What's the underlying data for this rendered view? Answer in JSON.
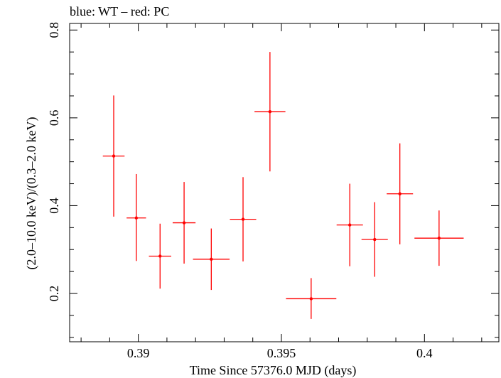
{
  "chart_data": {
    "type": "scatter",
    "title": "blue: WT – red: PC",
    "xlabel": "Time Since 57376.0 MJD (days)",
    "ylabel": "(2.0–10.0 keV)/(0.3–2.0 keV)",
    "xlim": [
      0.3876,
      0.4026
    ],
    "ylim": [
      0.09,
      0.815
    ],
    "x_ticks": [
      0.39,
      0.395,
      0.4
    ],
    "x_tick_labels": [
      "0.39",
      "0.395",
      "0.4"
    ],
    "y_ticks": [
      0.2,
      0.4,
      0.6,
      0.8
    ],
    "y_tick_labels": [
      "0.2",
      "0.4",
      "0.6",
      "0.8"
    ],
    "grid": false,
    "series": [
      {
        "name": "PC",
        "color": "#ff0000",
        "points": [
          {
            "x": 0.38914,
            "xerr": 0.00038,
            "y": 0.513,
            "yerr_lo": 0.138,
            "yerr_hi": 0.138
          },
          {
            "x": 0.38993,
            "xerr": 0.00034,
            "y": 0.372,
            "yerr_lo": 0.098,
            "yerr_hi": 0.1
          },
          {
            "x": 0.39076,
            "xerr": 0.00039,
            "y": 0.285,
            "yerr_lo": 0.074,
            "yerr_hi": 0.074
          },
          {
            "x": 0.3916,
            "xerr": 0.0004,
            "y": 0.361,
            "yerr_lo": 0.093,
            "yerr_hi": 0.093
          },
          {
            "x": 0.39255,
            "xerr": 0.00064,
            "y": 0.278,
            "yerr_lo": 0.07,
            "yerr_hi": 0.07
          },
          {
            "x": 0.39366,
            "xerr": 0.00046,
            "y": 0.369,
            "yerr_lo": 0.096,
            "yerr_hi": 0.096
          },
          {
            "x": 0.3946,
            "xerr": 0.00054,
            "y": 0.614,
            "yerr_lo": 0.136,
            "yerr_hi": 0.136
          },
          {
            "x": 0.39604,
            "xerr": 0.00088,
            "y": 0.188,
            "yerr_lo": 0.046,
            "yerr_hi": 0.047
          },
          {
            "x": 0.39739,
            "xerr": 0.00046,
            "y": 0.356,
            "yerr_lo": 0.094,
            "yerr_hi": 0.094
          },
          {
            "x": 0.39826,
            "xerr": 0.00046,
            "y": 0.323,
            "yerr_lo": 0.085,
            "yerr_hi": 0.085
          },
          {
            "x": 0.39914,
            "xerr": 0.00046,
            "y": 0.427,
            "yerr_lo": 0.115,
            "yerr_hi": 0.115
          },
          {
            "x": 0.40051,
            "xerr": 0.00086,
            "y": 0.326,
            "yerr_lo": 0.063,
            "yerr_hi": 0.063
          }
        ]
      }
    ]
  }
}
